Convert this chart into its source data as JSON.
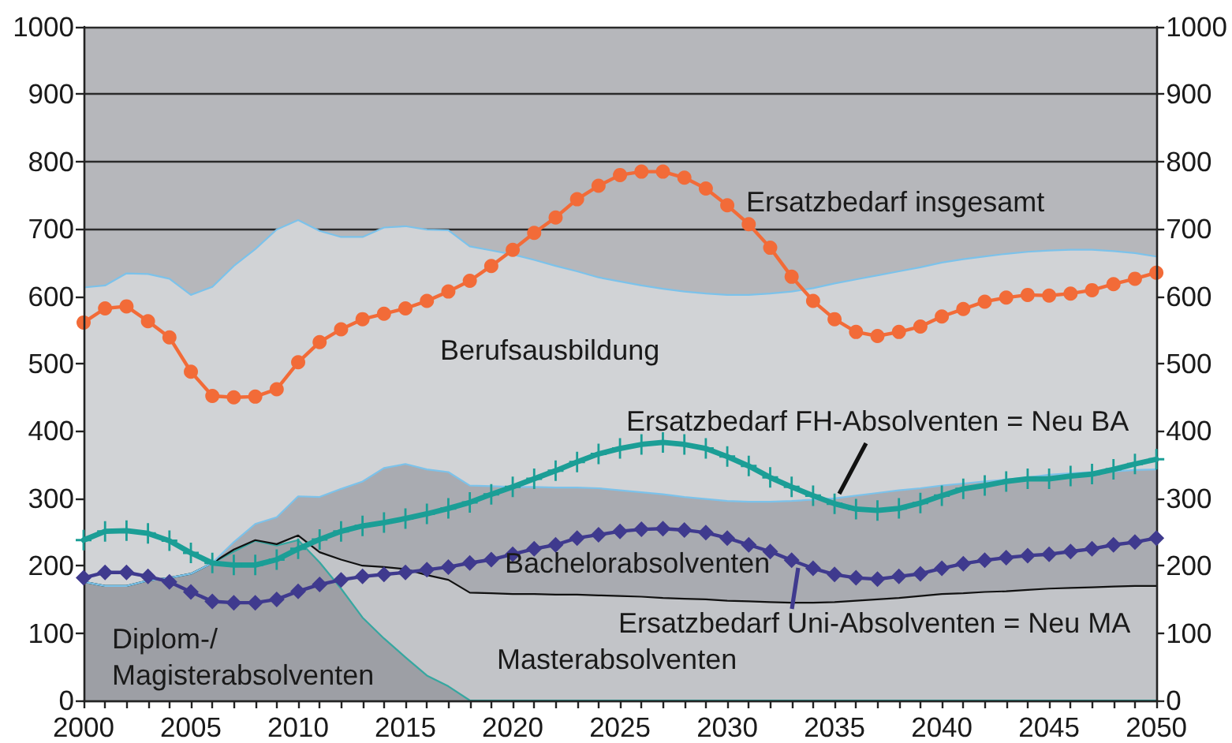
{
  "chart_data": {
    "type": "area",
    "stacked": true,
    "grid": "y",
    "x": [
      2000,
      2001,
      2002,
      2003,
      2004,
      2005,
      2006,
      2007,
      2008,
      2009,
      2010,
      2011,
      2012,
      2013,
      2014,
      2015,
      2016,
      2017,
      2018,
      2019,
      2020,
      2021,
      2022,
      2023,
      2024,
      2025,
      2026,
      2027,
      2028,
      2029,
      2030,
      2031,
      2032,
      2033,
      2034,
      2035,
      2036,
      2037,
      2038,
      2039,
      2040,
      2041,
      2042,
      2043,
      2044,
      2045,
      2046,
      2047,
      2048,
      2049,
      2050
    ],
    "xlim": [
      2000,
      2050
    ],
    "xticks": [
      2000,
      {
        "value": 2001,
        "label": null
      },
      {
        "value": 2002,
        "label": null
      },
      {
        "value": 2003,
        "label": null
      },
      {
        "value": 2004,
        "label": null
      },
      2005,
      {
        "value": 2006,
        "label": null
      },
      {
        "value": 2007,
        "label": null
      },
      {
        "value": 2008,
        "label": null
      },
      {
        "value": 2009,
        "label": null
      },
      2010,
      {
        "value": 2011,
        "label": null
      },
      {
        "value": 2012,
        "label": null
      },
      {
        "value": 2013,
        "label": null
      },
      {
        "value": 2014,
        "label": null
      },
      2015,
      {
        "value": 2016,
        "label": null
      },
      {
        "value": 2017,
        "label": null
      },
      {
        "value": 2018,
        "label": null
      },
      {
        "value": 2019,
        "label": null
      },
      2020,
      {
        "value": 2021,
        "label": null
      },
      {
        "value": 2022,
        "label": null
      },
      {
        "value": 2023,
        "label": null
      },
      {
        "value": 2024,
        "label": null
      },
      2025,
      {
        "value": 2026,
        "label": null
      },
      {
        "value": 2027,
        "label": null
      },
      {
        "value": 2028,
        "label": null
      },
      {
        "value": 2029,
        "label": null
      },
      2030,
      {
        "value": 2031,
        "label": null
      },
      {
        "value": 2032,
        "label": null
      },
      {
        "value": 2033,
        "label": null
      },
      {
        "value": 2034,
        "label": null
      },
      2035,
      {
        "value": 2036,
        "label": null
      },
      {
        "value": 2037,
        "label": null
      },
      {
        "value": 2038,
        "label": null
      },
      {
        "value": 2039,
        "label": null
      },
      2040,
      {
        "value": 2041,
        "label": null
      },
      {
        "value": 2042,
        "label": null
      },
      {
        "value": 2043,
        "label": null
      },
      {
        "value": 2044,
        "label": null
      },
      2045,
      {
        "value": 2046,
        "label": null
      },
      {
        "value": 2047,
        "label": null
      },
      {
        "value": 2048,
        "label": null
      },
      {
        "value": 2049,
        "label": null
      },
      2050
    ],
    "ylim": [
      0,
      1000
    ],
    "yticks": [
      0,
      100,
      200,
      300,
      400,
      500,
      600,
      700,
      800,
      900,
      1000
    ],
    "y2lim": [
      0,
      1000
    ],
    "y2ticks": [
      0,
      100,
      200,
      300,
      400,
      500,
      600,
      700,
      800,
      900,
      1000
    ],
    "series": [
      {
        "name": "Diplom-/ Magisterabsolventen",
        "color": "#9d9fa5",
        "values": [
          176,
          170,
          170,
          178,
          182,
          188,
          204,
          221,
          237,
          230,
          238,
          205,
          166,
          123,
          92,
          64,
          37,
          21,
          0,
          0,
          0,
          0,
          0,
          0,
          0,
          0,
          0,
          0,
          0,
          0,
          0,
          0,
          0,
          0,
          0,
          0,
          0,
          0,
          0,
          0,
          0,
          0,
          0,
          0,
          0,
          0,
          0,
          0,
          0,
          0,
          0
        ]
      },
      {
        "name": "Masterabsolventen",
        "color": "#c2c4c8",
        "values": [
          0,
          0,
          0,
          0,
          0,
          0,
          0,
          3,
          1,
          2,
          7,
          15,
          43,
          77,
          106,
          131,
          149,
          158,
          160,
          159,
          158,
          158,
          157,
          157,
          156,
          155,
          154,
          152,
          151,
          150,
          148,
          147,
          146,
          145,
          145,
          146,
          148,
          150,
          152,
          155,
          158,
          159,
          161,
          162,
          164,
          166,
          167,
          168,
          169,
          170,
          170
        ]
      },
      {
        "name": "Bachelorabsolventen",
        "color": "#a9abb1",
        "values": [
          0,
          0,
          0,
          0,
          0,
          0,
          0,
          11,
          24,
          40,
          58,
          82,
          105,
          125,
          147,
          156,
          157,
          160,
          159,
          159,
          159,
          159,
          159,
          159,
          159,
          157,
          155,
          154,
          151,
          149,
          148,
          148,
          149,
          151,
          153,
          154,
          156,
          158,
          160,
          160,
          161,
          163,
          164,
          166,
          167,
          169,
          170,
          171,
          171,
          172,
          173
        ]
      },
      {
        "name": "Berufsausbildung",
        "color": "#d1d3d6",
        "values": [
          437,
          446,
          464,
          455,
          444,
          414,
          410,
          410,
          408,
          427,
          410,
          395,
          374,
          363,
          357,
          353,
          356,
          359,
          355,
          350,
          345,
          337,
          329,
          321,
          313,
          310,
          307,
          305,
          305,
          305,
          306,
          307,
          309,
          311,
          314,
          319,
          321,
          323,
          325,
          328,
          331,
          333,
          334,
          335,
          335,
          333,
          332,
          330,
          327,
          322,
          316
        ]
      },
      {
        "name": "Ersatzbedarf insgesamt",
        "type": "line",
        "color": "#f26b38",
        "marker": "circle",
        "values": [
          561,
          582,
          585,
          563,
          539,
          488,
          452,
          450,
          451,
          462,
          502,
          532,
          551,
          566,
          574,
          582,
          593,
          607,
          623,
          645,
          669,
          694,
          717,
          744,
          764,
          780,
          785,
          785,
          776,
          760,
          735,
          707,
          672,
          629,
          593,
          566,
          547,
          541,
          547,
          555,
          570,
          581,
          592,
          598,
          602,
          601,
          604,
          609,
          618,
          626,
          635
        ]
      },
      {
        "name": "Ersatzbedarf FH-Absolventen = Neu BA",
        "type": "line",
        "color": "#1b9e96",
        "marker": "cross",
        "values": [
          238,
          251,
          252,
          248,
          237,
          219,
          204,
          201,
          201,
          209,
          225,
          239,
          251,
          259,
          264,
          270,
          277,
          285,
          294,
          306,
          317,
          329,
          341,
          354,
          366,
          374,
          380,
          383,
          380,
          374,
          362,
          348,
          331,
          317,
          304,
          292,
          284,
          282,
          285,
          293,
          304,
          314,
          319,
          325,
          329,
          329,
          333,
          336,
          343,
          351,
          358
        ]
      },
      {
        "name": "Ersatzbedarf Uni-Absolventen = Neu MA",
        "type": "line",
        "color": "#3f3a8e",
        "marker": "diamond",
        "values": [
          182,
          190,
          190,
          184,
          176,
          161,
          147,
          145,
          145,
          150,
          162,
          172,
          179,
          184,
          187,
          190,
          194,
          198,
          204,
          209,
          217,
          225,
          231,
          241,
          246,
          251,
          254,
          255,
          253,
          249,
          241,
          231,
          221,
          208,
          196,
          187,
          182,
          180,
          184,
          188,
          196,
          203,
          208,
          212,
          215,
          217,
          221,
          225,
          231,
          235,
          241
        ]
      }
    ]
  }
}
